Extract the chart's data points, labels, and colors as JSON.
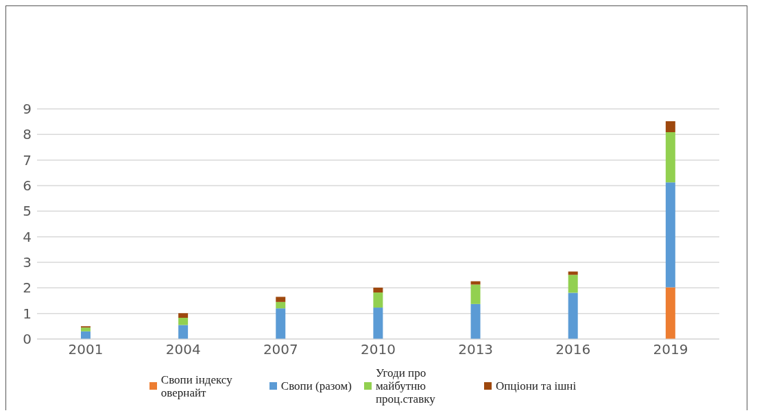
{
  "chart_data": {
    "type": "bar",
    "stacked": true,
    "categories": [
      "2001",
      "2004",
      "2007",
      "2010",
      "2013",
      "2016",
      "2019"
    ],
    "series": [
      {
        "name": "Свопи індексу овернайт",
        "color": "#ed7d31",
        "values": [
          null,
          null,
          null,
          null,
          null,
          null,
          2.02
        ]
      },
      {
        "name": "Свопи (разом)",
        "color": "#5b9bd5",
        "values": [
          0.3,
          0.55,
          1.2,
          1.23,
          1.37,
          1.81,
          4.11
        ]
      },
      {
        "name": "Угоди про майбутню проц.ставку",
        "color": "#92d050",
        "values": [
          0.15,
          0.28,
          0.25,
          0.59,
          0.76,
          0.7,
          1.96
        ]
      },
      {
        "name": "Опціони та ішні",
        "color": "#9e480e",
        "values": [
          0.05,
          0.18,
          0.2,
          0.19,
          0.13,
          0.13,
          0.43
        ]
      }
    ],
    "ylim": [
      0,
      9
    ],
    "yticks": [
      0,
      1,
      2,
      3,
      4,
      5,
      6,
      7,
      8,
      9
    ],
    "grid": "y",
    "legend": "bottom"
  }
}
